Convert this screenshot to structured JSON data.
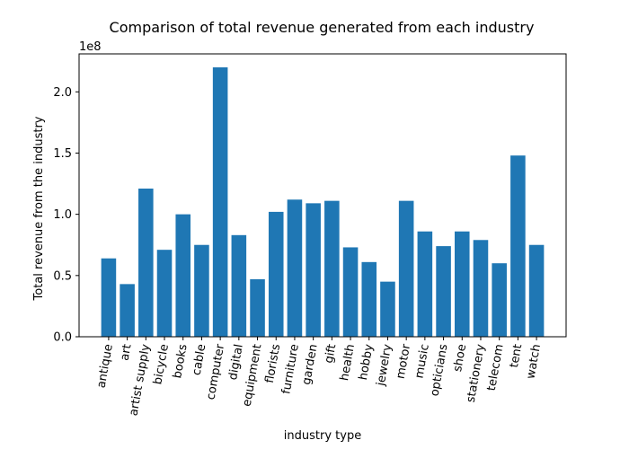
{
  "chart_data": {
    "type": "bar",
    "title": "Comparison of total revenue generated from each industry",
    "xlabel": "industry type",
    "ylabel": "Total revenue from the industry",
    "y_offset_label": "1e8",
    "y_scale": 100000000,
    "ylim": [
      0,
      2.31
    ],
    "yticks": [
      0.0,
      0.5,
      1.0,
      1.5,
      2.0
    ],
    "ytick_labels": [
      "0.0",
      "0.5",
      "1.0",
      "1.5",
      "2.0"
    ],
    "categories": [
      "antique",
      "art",
      "artist supply",
      "bicycle",
      "books",
      "cable",
      "computer",
      "digital",
      "equipment",
      "florists",
      "furniture",
      "garden",
      "gift",
      "health",
      "hobby",
      "jewelry",
      "motor",
      "music",
      "opticians",
      "shoe",
      "stationery",
      "telecom",
      "tent",
      "watch"
    ],
    "values": [
      0.64,
      0.43,
      1.21,
      0.71,
      1.0,
      0.75,
      2.2,
      0.83,
      0.47,
      1.02,
      1.12,
      1.09,
      1.11,
      0.73,
      0.61,
      0.45,
      1.11,
      0.86,
      0.74,
      0.86,
      0.79,
      0.6,
      1.48,
      0.75
    ],
    "color": "#1f77b4",
    "grid": false,
    "xtick_rotation": 80
  }
}
